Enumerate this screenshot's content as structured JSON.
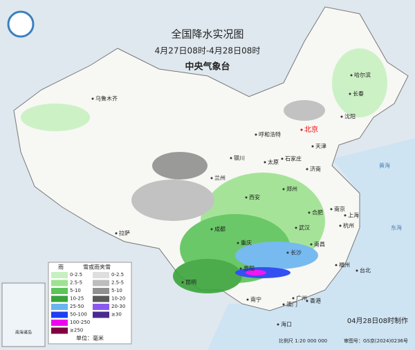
{
  "header": {
    "title": "全国降水实况图",
    "date_range": "4月27日08时-4月28日08时",
    "issuer": "中央气象台"
  },
  "cities": [
    "乌鲁木齐",
    "哈尔滨",
    "长春",
    "沈阳",
    "呼和浩特",
    "北京",
    "天津",
    "银川",
    "太原",
    "石家庄",
    "兰州",
    "济南",
    "郑州",
    "西安",
    "合肥",
    "南京",
    "上海",
    "杭州",
    "成都",
    "武汉",
    "重庆",
    "南昌",
    "拉萨",
    "长沙",
    "福州",
    "贵阳",
    "台北",
    "昆明",
    "广州",
    "南宁",
    "澳门",
    "香港",
    "海口"
  ],
  "seas": [
    "黄海",
    "东海"
  ],
  "legend": {
    "rain_title": "雨",
    "snow_title": "雪或雨夹雪",
    "rain_items": [
      {
        "label": "0-2.5",
        "color": "#c6f0c0"
      },
      {
        "label": "2.5-5",
        "color": "#9de38f"
      },
      {
        "label": "5-10",
        "color": "#5cc45a"
      },
      {
        "label": "10-25",
        "color": "#3aa43a"
      },
      {
        "label": "25-50",
        "color": "#6ab4f0"
      },
      {
        "label": "50-100",
        "color": "#1f3ef0"
      },
      {
        "label": "100-250",
        "color": "#f000f0"
      },
      {
        "label": "≥250",
        "color": "#800040"
      }
    ],
    "snow_items": [
      {
        "label": "0-2.5",
        "color": "#dedede"
      },
      {
        "label": "2.5-5",
        "color": "#bdbdbd"
      },
      {
        "label": "5-10",
        "color": "#909090"
      },
      {
        "label": "10-20",
        "color": "#5a5a5a"
      },
      {
        "label": "20-30",
        "color": "#8a5af0"
      },
      {
        "label": "≥30",
        "color": "#4a2a90"
      }
    ],
    "unit": "单位：毫米"
  },
  "inset": {
    "label": "南海诸岛"
  },
  "footer": {
    "made": "04月28日08时制作",
    "scale": "比例尺 1:20 000 000",
    "approval": "审图号：GS京(2024)0236号"
  }
}
